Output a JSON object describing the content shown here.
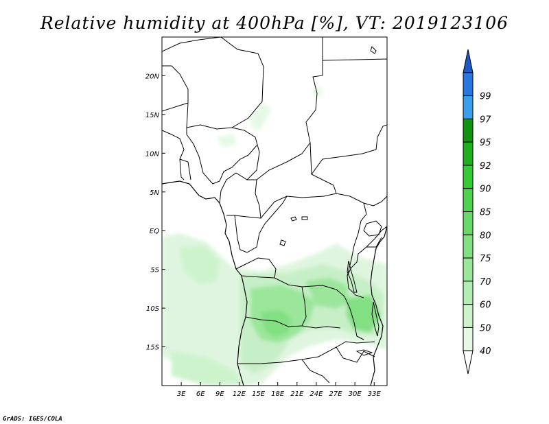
{
  "title": "Relative humidity at 400hPa [%], VT: 2019123106",
  "credit": "GrADS: IGES/COLA",
  "map": {
    "lon_range": [
      0,
      35
    ],
    "lat_range": [
      -20,
      25
    ],
    "lon_ticks": [
      "3E",
      "6E",
      "9E",
      "12E",
      "15E",
      "18E",
      "21E",
      "24E",
      "27E",
      "30E",
      "33E"
    ],
    "lat_ticks": [
      "20N",
      "15N",
      "10N",
      "5N",
      "EQ",
      "5S",
      "10S",
      "15S"
    ]
  },
  "colorbar": {
    "levels": [
      "40",
      "50",
      "60",
      "70",
      "75",
      "80",
      "85",
      "90",
      "92",
      "95",
      "97",
      "99"
    ],
    "colors": [
      "#ffffff",
      "#e6f9e6",
      "#cdf3cd",
      "#b4edb4",
      "#9be69b",
      "#82df82",
      "#69d869",
      "#50d150",
      "#37c937",
      "#1fae1f",
      "#129112",
      "#3f9ded",
      "#2a76de",
      "#1f59c4"
    ]
  },
  "chart_data": {
    "type": "heatmap",
    "title": "Relative humidity at 400hPa [%], VT: 2019123106",
    "variable": "Relative humidity",
    "units": "%",
    "pressure_level_hPa": 400,
    "valid_time": "2019123106",
    "contour_levels": [
      40,
      50,
      60,
      70,
      75,
      80,
      85,
      90,
      92,
      95,
      97,
      99
    ],
    "xlabel": "",
    "ylabel": "",
    "x_ticks": [
      "3E",
      "6E",
      "9E",
      "12E",
      "15E",
      "18E",
      "21E",
      "24E",
      "27E",
      "30E",
      "33E"
    ],
    "y_ticks": [
      "20N",
      "15N",
      "10N",
      "5N",
      "EQ",
      "5S",
      "10S",
      "15S"
    ],
    "xlim": [
      0,
      35
    ],
    "ylim": [
      -20,
      25
    ],
    "regions": [
      {
        "lon": [
          14,
          22
        ],
        "lat": [
          -14,
          -9
        ],
        "min_value": 85
      },
      {
        "lon": [
          22,
          30
        ],
        "lat": [
          -10,
          -6
        ],
        "min_value": 80
      },
      {
        "lon": [
          28,
          32
        ],
        "lat": [
          -13,
          -9
        ],
        "min_value": 85
      },
      {
        "lon": [
          2,
          9
        ],
        "lat": [
          -7,
          -1
        ],
        "min_value": 60
      },
      {
        "lon": [
          1,
          12
        ],
        "lat": [
          -20,
          -16
        ],
        "min_value": 50
      },
      {
        "lon": [
          8,
          10
        ],
        "lat": [
          10,
          12
        ],
        "min_value": 40
      },
      {
        "lon": [
          13,
          15
        ],
        "lat": [
          12,
          16
        ],
        "min_value": 40
      }
    ]
  }
}
